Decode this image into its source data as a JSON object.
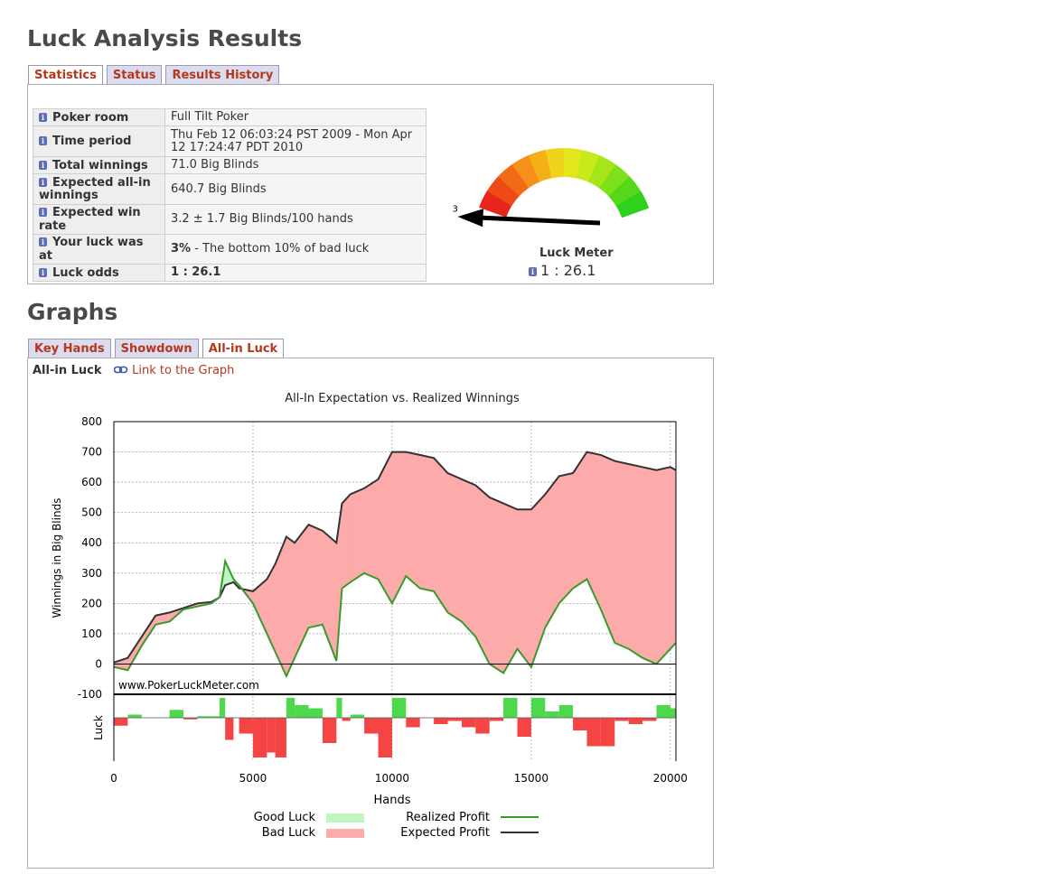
{
  "page_title": "Luck Analysis Results",
  "results_tabs": [
    {
      "label": "Statistics",
      "active": true
    },
    {
      "label": "Status",
      "active": false
    },
    {
      "label": "Results History",
      "active": false
    }
  ],
  "stats": {
    "rows": [
      {
        "key": "Poker room",
        "value": "Full Tilt Poker"
      },
      {
        "key": "Time period",
        "value": "Thu Feb 12 06:03:24 PST 2009 - Mon Apr 12 17:24:47 PDT 2010"
      },
      {
        "key": "Total winnings",
        "value": "71.0 Big Blinds"
      },
      {
        "key": "Expected all-in winnings",
        "value": "640.7 Big Blinds"
      },
      {
        "key": "Expected win rate",
        "value": "3.2 ± 1.7 Big Blinds/100 hands"
      },
      {
        "key": "Your luck was at",
        "value_bold": "3%",
        "value_rest": " - The bottom 10% of bad luck"
      },
      {
        "key": "Luck odds",
        "value": "1 : 26.1",
        "bold": true
      }
    ]
  },
  "luck_meter": {
    "title": "Luck Meter",
    "odds": "1 : 26.1",
    "needle_label": "3",
    "needle_percent": 3
  },
  "graphs_title": "Graphs",
  "graph_tabs": [
    {
      "label": "Key Hands",
      "active": false
    },
    {
      "label": "Showdown",
      "active": false
    },
    {
      "label": "All-in Luck",
      "active": true
    }
  ],
  "graph_header": {
    "label": "All-in Luck",
    "link": "Link to the Graph"
  },
  "colors": {
    "realized": "#3a9a2a",
    "expected": "#333333",
    "good_luck": "#4cd94c",
    "bad_luck": "#f44444",
    "bad_luck_area": "#fcaaaa",
    "good_luck_swatch": "#bff5bf",
    "tab_text": "#b5371c"
  },
  "chart_data": {
    "type": "line",
    "title": "All-In Expectation vs. Realized Winnings",
    "ylabel": "Winnings in Big Blinds",
    "luck_label": "Luck",
    "xlabel": "Hands",
    "watermark": "www.PokerLuckMeter.com",
    "xlim": [
      0,
      20200
    ],
    "ylim": [
      -100,
      800
    ],
    "x_ticks": [
      "0",
      "5000",
      "10000",
      "15000",
      "20000"
    ],
    "y_ticks": [
      "800",
      "700",
      "600",
      "500",
      "400",
      "300",
      "200",
      "100",
      "0",
      "-100"
    ],
    "grid": true,
    "legend": {
      "placement": "bottom",
      "good_luck": "Good Luck",
      "bad_luck": "Bad Luck",
      "realized": "Realized Profit",
      "expected": "Expected Profit"
    },
    "x": [
      0,
      500,
      1000,
      1500,
      2000,
      2500,
      3000,
      3500,
      3800,
      4000,
      4300,
      4500,
      5000,
      5500,
      5800,
      6200,
      6500,
      7000,
      7500,
      8000,
      8200,
      8500,
      9000,
      9500,
      10000,
      10500,
      11000,
      11500,
      12000,
      12500,
      13000,
      13500,
      14000,
      14500,
      15000,
      15500,
      16000,
      16500,
      17000,
      17500,
      18000,
      18500,
      19000,
      19500,
      20000,
      20200
    ],
    "series": [
      {
        "name": "Expected Profit",
        "values": [
          5,
          20,
          90,
          160,
          170,
          185,
          200,
          205,
          220,
          260,
          270,
          250,
          240,
          280,
          330,
          420,
          400,
          460,
          440,
          400,
          530,
          560,
          580,
          610,
          700,
          700,
          690,
          680,
          630,
          610,
          590,
          550,
          530,
          510,
          510,
          560,
          620,
          630,
          700,
          690,
          670,
          660,
          650,
          640,
          650,
          640
        ]
      },
      {
        "name": "Realized Profit",
        "values": [
          -10,
          -20,
          60,
          130,
          140,
          180,
          190,
          200,
          220,
          340,
          280,
          260,
          200,
          100,
          40,
          -40,
          20,
          120,
          130,
          10,
          250,
          270,
          300,
          280,
          200,
          290,
          250,
          240,
          170,
          140,
          90,
          0,
          -30,
          50,
          -10,
          120,
          200,
          250,
          280,
          180,
          70,
          50,
          20,
          0,
          50,
          70
        ]
      }
    ]
  }
}
